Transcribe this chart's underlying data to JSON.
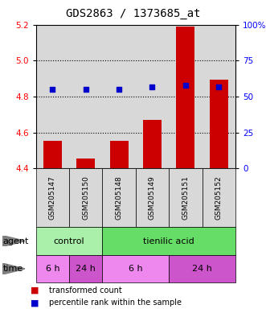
{
  "title": "GDS2863 / 1373685_at",
  "samples": [
    "GSM205147",
    "GSM205150",
    "GSM205148",
    "GSM205149",
    "GSM205151",
    "GSM205152"
  ],
  "bar_values": [
    4.555,
    4.455,
    4.555,
    4.67,
    5.19,
    4.895
  ],
  "bar_baseline": 4.4,
  "percentile_values": [
    55,
    55,
    55,
    57,
    58,
    57
  ],
  "ylim_left": [
    4.4,
    5.2
  ],
  "ylim_right": [
    0,
    100
  ],
  "yticks_left": [
    4.4,
    4.6,
    4.8,
    5.0,
    5.2
  ],
  "yticks_right": [
    0,
    25,
    50,
    75,
    100
  ],
  "bar_color": "#cc0000",
  "dot_color": "#0000cc",
  "agent_control_color": "#aaf0aa",
  "agent_tienilic_color": "#66dd66",
  "time_light_color": "#ee88ee",
  "time_dark_color": "#cc55cc",
  "plot_bg_color": "#d8d8d8",
  "sample_box_color": "#d8d8d8",
  "legend_bar_color": "#cc0000",
  "legend_dot_color": "#0000cc",
  "title_fontsize": 10,
  "tick_fontsize": 7.5,
  "sample_fontsize": 6.5,
  "row_fontsize": 8,
  "legend_fontsize": 7
}
